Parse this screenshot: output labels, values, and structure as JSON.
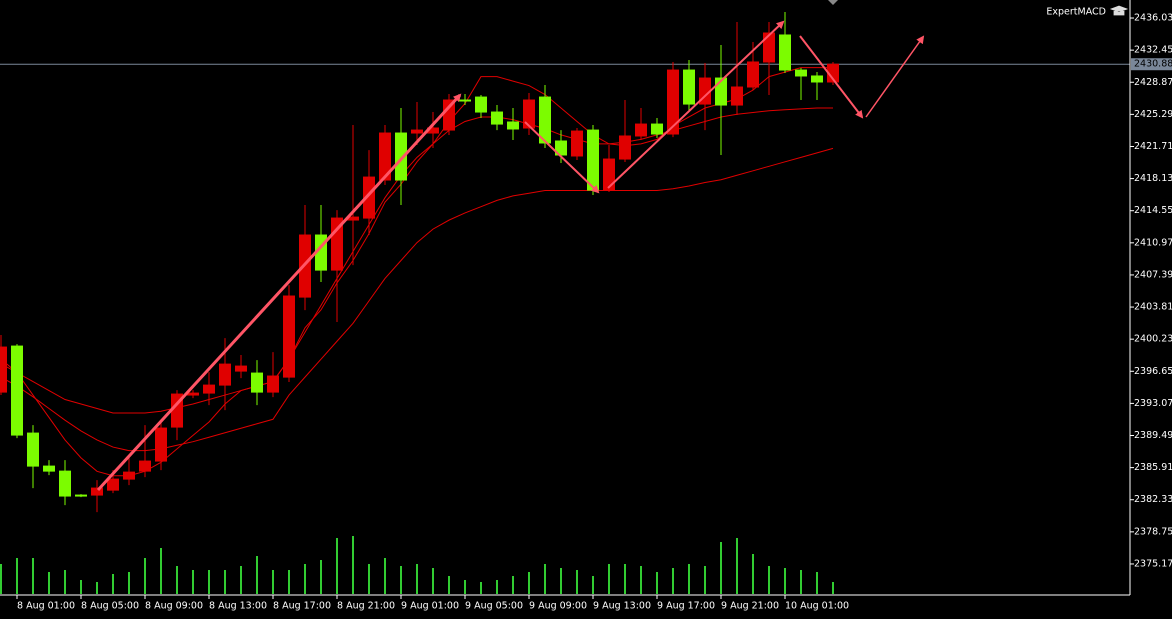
{
  "chart_data": {
    "type": "candlestick",
    "indicator": "ExpertMACD",
    "categories": [
      null,
      "8 Aug 01:00",
      null,
      null,
      null,
      "8 Aug 05:00",
      null,
      null,
      null,
      "8 Aug 09:00",
      null,
      null,
      null,
      "8 Aug 13:00",
      null,
      null,
      null,
      "8 Aug 17:00",
      null,
      null,
      null,
      "8 Aug 21:00",
      null,
      null,
      null,
      "9 Aug 01:00",
      null,
      null,
      null,
      "9 Aug 05:00",
      null,
      null,
      null,
      "9 Aug 09:00",
      null,
      null,
      null,
      "9 Aug 13:00",
      null,
      null,
      null,
      "9 Aug 17:00",
      null,
      null,
      null,
      "9 Aug 21:00",
      null,
      null,
      null,
      "10 Aug 01:00",
      null,
      null,
      null
    ],
    "open": [
      2394.33,
      2399.46,
      2389.76,
      2386.08,
      2385.52,
      2382.85,
      2382.85,
      2383.4,
      2384.63,
      2385.52,
      2386.64,
      2390.43,
      2394.0,
      2394.22,
      2395.11,
      2396.67,
      2396.45,
      2394.33,
      2396.0,
      2404.92,
      2411.84,
      2407.93,
      2413.51,
      2413.73,
      2417.97,
      2423.21,
      2423.21,
      2423.21,
      2423.54,
      2426.89,
      2427.22,
      2425.55,
      2424.44,
      2423.77,
      2427.22,
      2422.32,
      2420.65,
      2423.54,
      2416.85,
      2420.31,
      2422.88,
      2424.21,
      2423.1,
      2430.23,
      2426.44,
      2429.34,
      2426.33,
      2428.34,
      2431.13,
      2434.14,
      2430.23,
      2429.57,
      2428.9
    ],
    "high": [
      2400.69,
      2399.68,
      2390.65,
      2386.75,
      2386.75,
      2382.96,
      2384.52,
      2385.63,
      2386.97,
      2390.65,
      2390.99,
      2394.55,
      2394.55,
      2396.56,
      2400.35,
      2398.46,
      2397.9,
      2398.79,
      2406.26,
      2415.18,
      2415.18,
      2414.62,
      2424.1,
      2421.31,
      2424.1,
      2426.0,
      2426.67,
      2425.55,
      2427.56,
      2427.56,
      2427.45,
      2426.33,
      2426.0,
      2427.67,
      2428.56,
      2423.54,
      2423.77,
      2424.1,
      2421.87,
      2426.89,
      2426.0,
      2424.88,
      2431.13,
      2431.35,
      2431.02,
      2433.02,
      2435.59,
      2433.36,
      2435.59,
      2436.7,
      2430.46,
      2430.01,
      2431.13
    ],
    "low": [
      2394.0,
      2389.2,
      2383.63,
      2385.08,
      2381.73,
      2382.62,
      2380.95,
      2383.07,
      2383.96,
      2384.85,
      2385.63,
      2388.98,
      2393.66,
      2392.88,
      2392.32,
      2395.89,
      2392.88,
      2393.77,
      2395.45,
      2403.47,
      2406.6,
      2402.14,
      2408.49,
      2411.84,
      2417.41,
      2415.18,
      2421.87,
      2421.54,
      2422.99,
      2426.33,
      2424.88,
      2423.54,
      2422.43,
      2422.99,
      2421.54,
      2419.87,
      2420.2,
      2416.3,
      2416.63,
      2419.98,
      2422.43,
      2422.65,
      2422.76,
      2425.55,
      2423.54,
      2420.76,
      2425.22,
      2428.0,
      2427.45,
      2429.9,
      2426.89,
      2426.89,
      2428.56
    ],
    "close": [
      2399.35,
      2389.54,
      2386.08,
      2385.52,
      2382.74,
      2382.74,
      2383.63,
      2384.63,
      2385.41,
      2386.64,
      2390.32,
      2394.11,
      2394.22,
      2395.11,
      2397.45,
      2397.23,
      2394.33,
      2396.12,
      2405.04,
      2411.84,
      2407.93,
      2413.73,
      2413.84,
      2418.3,
      2423.21,
      2417.97,
      2423.54,
      2423.77,
      2426.89,
      2426.78,
      2425.55,
      2424.21,
      2423.66,
      2426.89,
      2422.1,
      2420.76,
      2423.43,
      2416.85,
      2420.31,
      2422.88,
      2424.21,
      2423.1,
      2430.23,
      2426.44,
      2429.34,
      2426.33,
      2428.34,
      2431.13,
      2434.36,
      2430.23,
      2429.57,
      2428.9,
      2430.88
    ],
    "up_color": "#e00000",
    "down_color": "#7cfc00",
    "volume": {
      "color": "#32cd32",
      "values": [
        30,
        36,
        36,
        22,
        24,
        14,
        12,
        20,
        22,
        36,
        46,
        28,
        24,
        24,
        24,
        28,
        38,
        24,
        24,
        30,
        34,
        56,
        58,
        30,
        36,
        28,
        30,
        26,
        18,
        14,
        12,
        14,
        18,
        22,
        30,
        26,
        24,
        18,
        30,
        30,
        28,
        22,
        26,
        30,
        28,
        52,
        56,
        40,
        28,
        26,
        24,
        22,
        12
      ]
    },
    "indicator_lines": [
      {
        "color": "#e00000",
        "values": [
          2398,
          2396.5,
          2394,
          2391.5,
          2389,
          2387,
          2385.5,
          2385,
          2385,
          2385.5,
          2386.5,
          2388,
          2389.5,
          2391,
          2393,
          2394.5,
          2395,
          2395.5,
          2398,
          2401.5,
          2403.5,
          2406.5,
          2409,
          2412,
          2415.5,
          2417.5,
          2420,
          2422,
          2424.5,
          2426.5,
          2429.5,
          2429.5,
          2429,
          2428.5,
          2427.5,
          2426,
          2424.5,
          2423,
          2422,
          2421.8,
          2422,
          2422.5,
          2424,
          2425,
          2426,
          2426.5,
          2427,
          2428,
          2429.5,
          2430,
          2430.5,
          2430.5,
          2430.5
        ]
      },
      {
        "color": "#e00000",
        "values": [
          2397.5,
          2396.5,
          2395.5,
          2394.5,
          2393.5,
          2393,
          2392.5,
          2392,
          2392,
          2392,
          2392.2,
          2392.6,
          2393,
          2393.5,
          2394,
          2394.5,
          2395,
          2395.5,
          2398,
          2401,
          2404,
          2407,
          2410,
          2413,
          2416,
          2418.5,
          2420.5,
          2422,
          2423.5,
          2424.5,
          2425,
          2425,
          2424.7,
          2424.2,
          2423.7,
          2423,
          2422.5,
          2422,
          2422,
          2422.2,
          2422.5,
          2423,
          2423.5,
          2424,
          2424.5,
          2425,
          2425.3,
          2425.5,
          2425.7,
          2425.8,
          2425.9,
          2426,
          2426
        ]
      },
      {
        "color": "#e00000",
        "values": [
          2396,
          2395,
          2393.8,
          2392.5,
          2391.2,
          2390,
          2389,
          2388.2,
          2387.8,
          2387.8,
          2388,
          2388.4,
          2388.8,
          2389.3,
          2389.8,
          2390.3,
          2390.8,
          2391.3,
          2394,
          2396,
          2398,
          2400,
          2402,
          2404.5,
          2407,
          2409,
          2411,
          2412.5,
          2413.5,
          2414.3,
          2415,
          2415.7,
          2416.2,
          2416.5,
          2416.8,
          2416.8,
          2416.8,
          2416.8,
          2416.8,
          2416.8,
          2416.8,
          2416.8,
          2417,
          2417.3,
          2417.7,
          2418,
          2418.5,
          2419,
          2419.5,
          2420,
          2420.5,
          2421,
          2421.5
        ]
      }
    ],
    "current_price": 2430.88,
    "ylim": [
      2371.71,
      2438.04
    ],
    "yticks": [
      2436.03,
      2432.45,
      2428.87,
      2425.29,
      2421.71,
      2418.13,
      2414.55,
      2410.97,
      2407.39,
      2403.81,
      2400.23,
      2396.65,
      2393.07,
      2389.49,
      2385.91,
      2382.33,
      2378.75,
      2375.17
    ]
  }
}
